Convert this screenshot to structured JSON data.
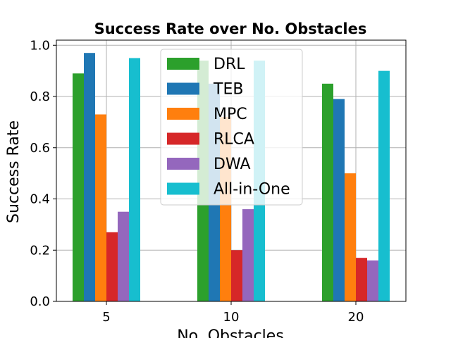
{
  "chart_data": {
    "type": "bar",
    "title": "Success Rate over No. Obstacles",
    "xlabel": "No. Obstacles",
    "ylabel": "Success Rate",
    "categories": [
      "5",
      "10",
      "20"
    ],
    "ylim": [
      0,
      1.02
    ],
    "yticks": [
      "0.0",
      "0.2",
      "0.4",
      "0.6",
      "0.8",
      "1.0"
    ],
    "grid": true,
    "legend_position": "top-center",
    "series": [
      {
        "name": "DRL",
        "color": "#2ca02c",
        "values": [
          0.89,
          0.94,
          0.85
        ]
      },
      {
        "name": "TEB",
        "color": "#1f77b4",
        "values": [
          0.97,
          0.85,
          0.79
        ]
      },
      {
        "name": "MPC",
        "color": "#ff7f0e",
        "values": [
          0.73,
          0.72,
          0.5
        ]
      },
      {
        "name": "RLCA",
        "color": "#d62728",
        "values": [
          0.27,
          0.2,
          0.17
        ]
      },
      {
        "name": "DWA",
        "color": "#9467bd",
        "values": [
          0.35,
          0.36,
          0.16
        ]
      },
      {
        "name": "All-in-One",
        "color": "#17becf",
        "values": [
          0.95,
          0.94,
          0.9
        ]
      }
    ]
  }
}
